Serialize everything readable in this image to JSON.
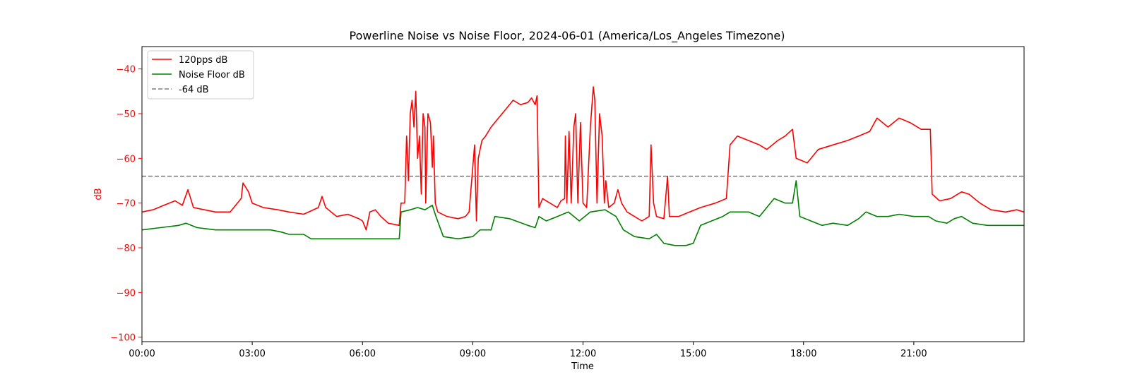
{
  "chart_data": {
    "type": "line",
    "title": "Powerline Noise vs Noise Floor, 2024-06-01 (America/Los_Angeles Timezone)",
    "xlabel": "Time",
    "ylabel": "dB",
    "xlim": [
      0,
      24
    ],
    "ylim": [
      -101,
      -35
    ],
    "x_ticks": [
      {
        "value": 0,
        "label": "00:00"
      },
      {
        "value": 3,
        "label": "03:00"
      },
      {
        "value": 6,
        "label": "06:00"
      },
      {
        "value": 9,
        "label": "09:00"
      },
      {
        "value": 12,
        "label": "12:00"
      },
      {
        "value": 15,
        "label": "15:00"
      },
      {
        "value": 18,
        "label": "18:00"
      },
      {
        "value": 21,
        "label": "21:00"
      }
    ],
    "y_ticks": [
      {
        "value": -40,
        "label": "−40"
      },
      {
        "value": -50,
        "label": "−50"
      },
      {
        "value": -60,
        "label": "−60"
      },
      {
        "value": -70,
        "label": "−70"
      },
      {
        "value": -80,
        "label": "−80"
      },
      {
        "value": -90,
        "label": "−90"
      },
      {
        "value": -100,
        "label": "−100"
      }
    ],
    "legend": {
      "placement": "top-left",
      "entries": [
        {
          "label": "120pps dB",
          "color": "#ff0000",
          "style": "solid"
        },
        {
          "label": "Noise Floor dB",
          "color": "#008000",
          "style": "solid"
        },
        {
          "label": "-64 dB",
          "color": "#808080",
          "style": "dashed"
        }
      ]
    },
    "reference_line": {
      "y": -64,
      "color": "#808080",
      "style": "dashed"
    },
    "ylabel_color": "#ff0000",
    "ytick_color": "#ff0000",
    "grid": false,
    "series": [
      {
        "name": "120pps dB",
        "color": "#ff0000",
        "points": [
          [
            0,
            -72
          ],
          [
            0.3,
            -71.5
          ],
          [
            0.6,
            -70.5
          ],
          [
            0.9,
            -69.5
          ],
          [
            1.1,
            -70.5
          ],
          [
            1.25,
            -67
          ],
          [
            1.4,
            -71
          ],
          [
            1.7,
            -71.5
          ],
          [
            2.0,
            -72
          ],
          [
            2.4,
            -72
          ],
          [
            2.7,
            -69
          ],
          [
            2.75,
            -65.5
          ],
          [
            2.9,
            -67.5
          ],
          [
            3.0,
            -70
          ],
          [
            3.3,
            -71
          ],
          [
            3.7,
            -71.5
          ],
          [
            4.0,
            -72
          ],
          [
            4.4,
            -72.5
          ],
          [
            4.8,
            -71
          ],
          [
            4.9,
            -68.5
          ],
          [
            5.0,
            -71
          ],
          [
            5.3,
            -73
          ],
          [
            5.6,
            -72.5
          ],
          [
            5.9,
            -73.5
          ],
          [
            6.0,
            -74
          ],
          [
            6.1,
            -76
          ],
          [
            6.2,
            -72
          ],
          [
            6.35,
            -71.5
          ],
          [
            6.5,
            -73
          ],
          [
            6.7,
            -74.5
          ],
          [
            7.0,
            -75
          ],
          [
            7.05,
            -70
          ],
          [
            7.15,
            -70
          ],
          [
            7.2,
            -55
          ],
          [
            7.25,
            -65
          ],
          [
            7.3,
            -50
          ],
          [
            7.35,
            -47
          ],
          [
            7.4,
            -53
          ],
          [
            7.45,
            -45
          ],
          [
            7.5,
            -60
          ],
          [
            7.55,
            -55
          ],
          [
            7.6,
            -68
          ],
          [
            7.65,
            -50
          ],
          [
            7.7,
            -53
          ],
          [
            7.72,
            -70
          ],
          [
            7.78,
            -50
          ],
          [
            7.85,
            -52
          ],
          [
            7.9,
            -62
          ],
          [
            7.93,
            -55
          ],
          [
            7.98,
            -70
          ],
          [
            8.05,
            -72
          ],
          [
            8.3,
            -73
          ],
          [
            8.6,
            -73.5
          ],
          [
            8.8,
            -73
          ],
          [
            8.9,
            -72
          ],
          [
            9.0,
            -62
          ],
          [
            9.05,
            -57
          ],
          [
            9.1,
            -74
          ],
          [
            9.15,
            -60
          ],
          [
            9.25,
            -56
          ],
          [
            9.35,
            -55
          ],
          [
            9.5,
            -53
          ],
          [
            9.7,
            -51
          ],
          [
            9.9,
            -49
          ],
          [
            10.1,
            -47
          ],
          [
            10.3,
            -48
          ],
          [
            10.5,
            -47.5
          ],
          [
            10.6,
            -46.5
          ],
          [
            10.7,
            -48
          ],
          [
            10.75,
            -46
          ],
          [
            10.8,
            -71
          ],
          [
            10.9,
            -69
          ],
          [
            11.1,
            -70
          ],
          [
            11.3,
            -71
          ],
          [
            11.4,
            -69.5
          ],
          [
            11.5,
            -69
          ],
          [
            11.52,
            -55
          ],
          [
            11.56,
            -70
          ],
          [
            11.62,
            -54
          ],
          [
            11.68,
            -70
          ],
          [
            11.75,
            -53
          ],
          [
            11.8,
            -50
          ],
          [
            11.86,
            -70
          ],
          [
            11.93,
            -52
          ],
          [
            12.0,
            -70
          ],
          [
            12.1,
            -71
          ],
          [
            12.2,
            -53
          ],
          [
            12.28,
            -44
          ],
          [
            12.32,
            -47
          ],
          [
            12.38,
            -70
          ],
          [
            12.45,
            -50
          ],
          [
            12.52,
            -55
          ],
          [
            12.58,
            -70
          ],
          [
            12.62,
            -65
          ],
          [
            12.7,
            -71
          ],
          [
            12.85,
            -70
          ],
          [
            12.95,
            -67
          ],
          [
            13.05,
            -70
          ],
          [
            13.2,
            -72
          ],
          [
            13.4,
            -73
          ],
          [
            13.6,
            -74
          ],
          [
            13.8,
            -73
          ],
          [
            13.85,
            -57
          ],
          [
            13.92,
            -70
          ],
          [
            14.0,
            -73
          ],
          [
            14.2,
            -73.5
          ],
          [
            14.3,
            -64
          ],
          [
            14.35,
            -73
          ],
          [
            14.6,
            -73
          ],
          [
            14.9,
            -72
          ],
          [
            15.2,
            -71
          ],
          [
            15.6,
            -70
          ],
          [
            15.9,
            -69
          ],
          [
            16.0,
            -57
          ],
          [
            16.2,
            -55
          ],
          [
            16.5,
            -56
          ],
          [
            16.8,
            -57
          ],
          [
            17.0,
            -58
          ],
          [
            17.3,
            -56
          ],
          [
            17.5,
            -55
          ],
          [
            17.7,
            -53.5
          ],
          [
            17.8,
            -60
          ],
          [
            18.1,
            -61
          ],
          [
            18.4,
            -58
          ],
          [
            18.8,
            -57
          ],
          [
            19.2,
            -56
          ],
          [
            19.5,
            -55
          ],
          [
            19.8,
            -54
          ],
          [
            20.0,
            -51
          ],
          [
            20.3,
            -53
          ],
          [
            20.6,
            -51
          ],
          [
            20.9,
            -52
          ],
          [
            21.2,
            -53.5
          ],
          [
            21.45,
            -53.5
          ],
          [
            21.5,
            -68
          ],
          [
            21.7,
            -69.5
          ],
          [
            22.0,
            -69
          ],
          [
            22.3,
            -67.5
          ],
          [
            22.5,
            -68
          ],
          [
            22.8,
            -70
          ],
          [
            23.1,
            -71.5
          ],
          [
            23.5,
            -72
          ],
          [
            23.8,
            -71.5
          ],
          [
            24.0,
            -72
          ]
        ]
      },
      {
        "name": "Noise Floor dB",
        "color": "#008000",
        "points": [
          [
            0,
            -76
          ],
          [
            0.5,
            -75.5
          ],
          [
            1.0,
            -75
          ],
          [
            1.2,
            -74.5
          ],
          [
            1.5,
            -75.5
          ],
          [
            2.0,
            -76
          ],
          [
            2.5,
            -76
          ],
          [
            3.0,
            -76
          ],
          [
            3.5,
            -76
          ],
          [
            3.8,
            -76.5
          ],
          [
            4.0,
            -77
          ],
          [
            4.4,
            -77
          ],
          [
            4.6,
            -78
          ],
          [
            5.0,
            -78
          ],
          [
            5.5,
            -78
          ],
          [
            6.0,
            -78
          ],
          [
            6.5,
            -78
          ],
          [
            7.0,
            -78
          ],
          [
            7.05,
            -72
          ],
          [
            7.3,
            -71.5
          ],
          [
            7.5,
            -71
          ],
          [
            7.7,
            -71.5
          ],
          [
            7.9,
            -70.5
          ],
          [
            8.0,
            -73
          ],
          [
            8.2,
            -77.5
          ],
          [
            8.6,
            -78
          ],
          [
            9.0,
            -77.5
          ],
          [
            9.2,
            -76
          ],
          [
            9.5,
            -76
          ],
          [
            9.6,
            -73
          ],
          [
            10.0,
            -73.5
          ],
          [
            10.5,
            -75
          ],
          [
            10.7,
            -75.5
          ],
          [
            10.8,
            -73
          ],
          [
            11.0,
            -74
          ],
          [
            11.3,
            -73
          ],
          [
            11.6,
            -72
          ],
          [
            11.9,
            -74
          ],
          [
            12.2,
            -72
          ],
          [
            12.6,
            -71.5
          ],
          [
            12.9,
            -73
          ],
          [
            13.1,
            -76
          ],
          [
            13.4,
            -77.5
          ],
          [
            13.8,
            -78
          ],
          [
            14.0,
            -77
          ],
          [
            14.2,
            -79
          ],
          [
            14.5,
            -79.5
          ],
          [
            14.8,
            -79.5
          ],
          [
            15.0,
            -79
          ],
          [
            15.2,
            -75
          ],
          [
            15.5,
            -74
          ],
          [
            15.8,
            -73
          ],
          [
            16.0,
            -72
          ],
          [
            16.5,
            -72
          ],
          [
            16.8,
            -73
          ],
          [
            17.0,
            -71
          ],
          [
            17.2,
            -69
          ],
          [
            17.5,
            -70
          ],
          [
            17.7,
            -70
          ],
          [
            17.8,
            -65
          ],
          [
            17.9,
            -73
          ],
          [
            18.2,
            -74
          ],
          [
            18.5,
            -75
          ],
          [
            18.8,
            -74.5
          ],
          [
            19.2,
            -75
          ],
          [
            19.5,
            -73.5
          ],
          [
            19.7,
            -72
          ],
          [
            20.0,
            -73
          ],
          [
            20.3,
            -73
          ],
          [
            20.6,
            -72.5
          ],
          [
            21.0,
            -73
          ],
          [
            21.4,
            -73
          ],
          [
            21.6,
            -74
          ],
          [
            21.9,
            -74.5
          ],
          [
            22.1,
            -73.5
          ],
          [
            22.3,
            -73
          ],
          [
            22.6,
            -74.5
          ],
          [
            23.0,
            -75
          ],
          [
            23.4,
            -75
          ],
          [
            23.8,
            -75
          ],
          [
            24.0,
            -75
          ]
        ]
      }
    ]
  }
}
